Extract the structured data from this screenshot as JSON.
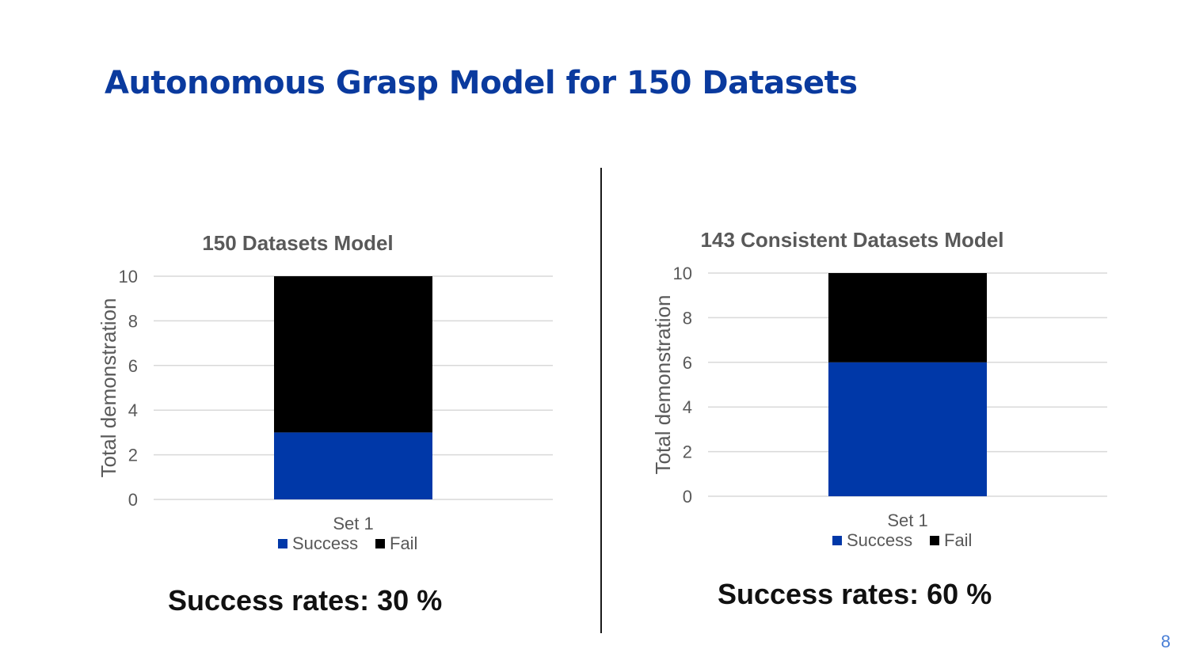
{
  "slide": {
    "title": "Autonomous Grasp Model for 150 Datasets",
    "page_number": "8"
  },
  "colors": {
    "title": "#0a3a9e",
    "success": "#0038a8",
    "fail": "#000000",
    "grid": "#d9d9d9",
    "text": "#595959"
  },
  "chart_data": [
    {
      "type": "bar",
      "stacked": true,
      "title": "150 Datasets Model",
      "ylabel": "Total demonstration",
      "xlabel": "",
      "categories": [
        "Set 1"
      ],
      "ylim": [
        0,
        10
      ],
      "yticks": [
        0,
        2,
        4,
        6,
        8,
        10
      ],
      "grid": true,
      "legend": "bottom",
      "series": [
        {
          "name": "Success",
          "values": [
            3
          ],
          "color": "#0038a8"
        },
        {
          "name": "Fail",
          "values": [
            7
          ],
          "color": "#000000"
        }
      ],
      "caption": "Success rates: 30 %"
    },
    {
      "type": "bar",
      "stacked": true,
      "title": "143 Consistent Datasets Model",
      "ylabel": "Total demonstration",
      "xlabel": "",
      "categories": [
        "Set 1"
      ],
      "ylim": [
        0,
        10
      ],
      "yticks": [
        0,
        2,
        4,
        6,
        8,
        10
      ],
      "grid": true,
      "legend": "bottom",
      "series": [
        {
          "name": "Success",
          "values": [
            6
          ],
          "color": "#0038a8"
        },
        {
          "name": "Fail",
          "values": [
            4
          ],
          "color": "#000000"
        }
      ],
      "caption": "Success rates: 60 %"
    }
  ]
}
